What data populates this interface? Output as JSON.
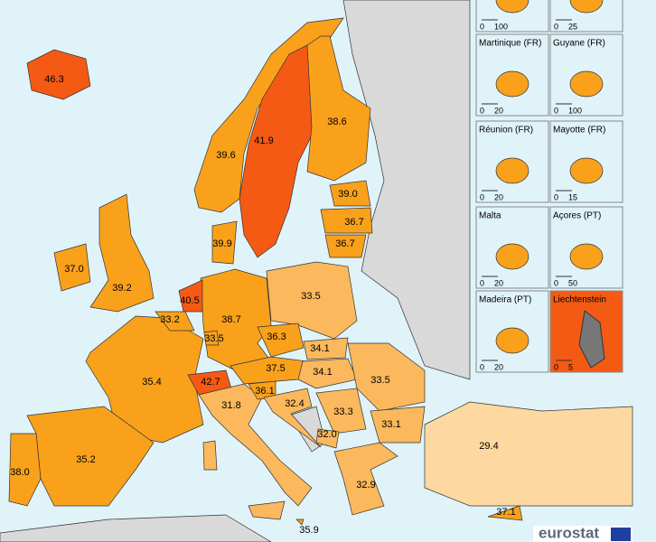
{
  "map": {
    "regions": [
      {
        "label": "46.3"
      },
      {
        "label": "41.9"
      },
      {
        "label": "38.6"
      },
      {
        "label": "39.6"
      },
      {
        "label": "39.0"
      },
      {
        "label": "36.7"
      },
      {
        "label": "36.7"
      },
      {
        "label": "39.9"
      },
      {
        "label": "37.0"
      },
      {
        "label": "39.2"
      },
      {
        "label": "40.5"
      },
      {
        "label": "33.2"
      },
      {
        "label": "38.7"
      },
      {
        "label": "33.5"
      },
      {
        "label": "33.5"
      },
      {
        "label": "36.3"
      },
      {
        "label": "34.1"
      },
      {
        "label": "37.5"
      },
      {
        "label": "34.1"
      },
      {
        "label": "35.4"
      },
      {
        "label": "42.7"
      },
      {
        "label": "36.1"
      },
      {
        "label": "32.4"
      },
      {
        "label": "33.5"
      },
      {
        "label": "31.8"
      },
      {
        "label": "33.3"
      },
      {
        "label": "33.1"
      },
      {
        "label": "32.0"
      },
      {
        "label": "38.0"
      },
      {
        "label": "35.2"
      },
      {
        "label": "32.9"
      },
      {
        "label": "29.4"
      },
      {
        "label": "37.1"
      },
      {
        "label": "35.9"
      }
    ],
    "insets": [
      {
        "scale": [
          "0",
          "100"
        ]
      },
      {
        "scale": [
          "0",
          "25"
        ]
      },
      {
        "name": "Martinique (FR)",
        "scale": [
          "0",
          "20"
        ]
      },
      {
        "name": "Guyane (FR)",
        "scale": [
          "0",
          "100"
        ]
      },
      {
        "name": "Réunion (FR)",
        "scale": [
          "0",
          "20"
        ]
      },
      {
        "name": "Mayotte (FR)",
        "scale": [
          "0",
          "15"
        ]
      },
      {
        "name": "Malta",
        "scale": [
          "0",
          "20"
        ]
      },
      {
        "name": "Açores (PT)",
        "scale": [
          "0",
          "50"
        ]
      },
      {
        "name": "Madeira (PT)",
        "scale": [
          "0",
          "20"
        ]
      },
      {
        "name": "Liechtenstein",
        "scale": [
          "0",
          "5"
        ]
      }
    ],
    "logo": "eurostat"
  }
}
